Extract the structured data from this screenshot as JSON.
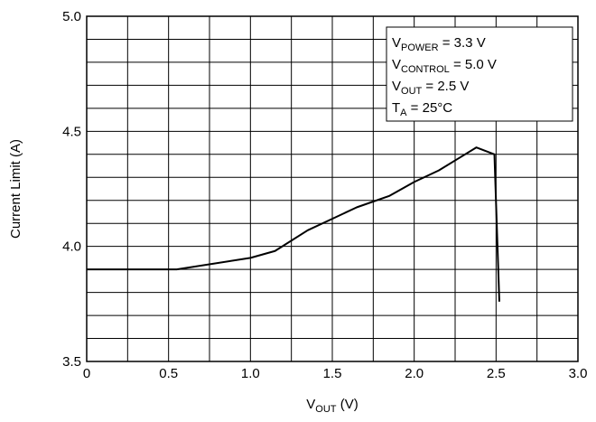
{
  "chart_data": {
    "type": "line",
    "ylabel": "Current Limit (A)",
    "xlabel": {
      "main": "V",
      "sub": "OUT",
      "rest": " (V)"
    },
    "x": [
      0,
      0.55,
      1.0,
      1.15,
      1.35,
      1.5,
      1.65,
      1.85,
      2.0,
      2.15,
      2.38,
      2.49,
      2.52
    ],
    "series": [
      {
        "color": "#000000",
        "values": [
          3.9,
          3.9,
          3.95,
          3.98,
          4.07,
          4.12,
          4.17,
          4.22,
          4.28,
          4.33,
          4.43,
          4.4,
          3.76
        ]
      }
    ],
    "xlim": [
      0,
      3.0
    ],
    "ylim": [
      3.5,
      5.0
    ],
    "xticks": [
      0,
      0.5,
      {
        "value": 1.0,
        "label": "1.0"
      },
      1.5,
      {
        "value": 2.0,
        "label": "2.0"
      },
      2.5,
      {
        "value": 3.0,
        "label": "3.0"
      }
    ],
    "yticks": [
      {
        "value": 3.5,
        "label": "3.5"
      },
      {
        "value": 4.0,
        "label": "4.0"
      },
      {
        "value": 4.5,
        "label": "4.5"
      },
      {
        "value": 5.0,
        "label": "5.0"
      }
    ],
    "xminor": [
      0.25,
      0.75,
      1.25,
      1.75,
      2.25,
      2.75
    ],
    "yminor": [
      3.6,
      3.7,
      3.8,
      3.9,
      4.1,
      4.2,
      4.3,
      4.4,
      4.6,
      4.7,
      4.8,
      4.9
    ],
    "grid": true,
    "legend": [
      {
        "main": "V",
        "sub": "POWER",
        "rest": " = 3.3 V"
      },
      {
        "main": "V",
        "sub": "CONTROL",
        "rest": " = 5.0 V"
      },
      {
        "main": "V",
        "sub": "OUT",
        "rest": " = 2.5 V"
      },
      {
        "main": "T",
        "sub": "A",
        "rest": " = 25°C"
      }
    ]
  }
}
